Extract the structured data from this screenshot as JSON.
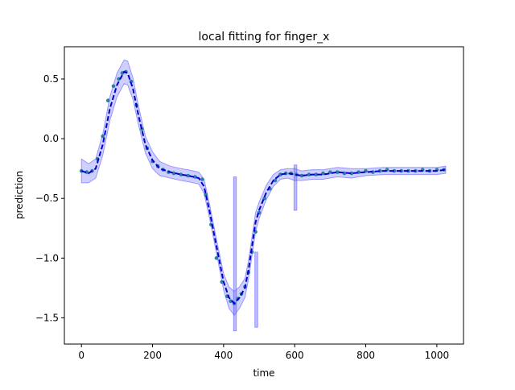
{
  "chart_data": {
    "type": "line",
    "title": "local fitting for finger_x",
    "xlabel": "time",
    "ylabel": "prediction",
    "xlim": [
      -48,
      1075
    ],
    "ylim": [
      -1.72,
      0.77
    ],
    "xticks": [
      0,
      200,
      400,
      600,
      800,
      1000
    ],
    "xtick_labels": [
      "0",
      "200",
      "400",
      "600",
      "800",
      "1000"
    ],
    "yticks": [
      0.5,
      0.0,
      -0.5,
      -1.0,
      -1.5
    ],
    "ytick_labels": [
      "0.5",
      "0.0",
      "−0.5",
      "−1.0",
      "−1.5"
    ],
    "grid": false,
    "series": [
      {
        "name": "local fit",
        "style": "dashed",
        "color": "#0000cc",
        "x": [
          0,
          20,
          40,
          60,
          80,
          100,
          120,
          130,
          145,
          160,
          180,
          200,
          220,
          250,
          280,
          300,
          330,
          345,
          360,
          380,
          400,
          415,
          430,
          445,
          460,
          470,
          480,
          490,
          500,
          520,
          540,
          560,
          580,
          600,
          620,
          650,
          680,
          700,
          720,
          760,
          800,
          850,
          900,
          950,
          1000,
          1025
        ],
        "y": [
          -0.27,
          -0.29,
          -0.25,
          -0.05,
          0.25,
          0.45,
          0.56,
          0.55,
          0.42,
          0.2,
          -0.05,
          -0.18,
          -0.25,
          -0.28,
          -0.3,
          -0.31,
          -0.33,
          -0.4,
          -0.6,
          -0.9,
          -1.2,
          -1.33,
          -1.38,
          -1.33,
          -1.25,
          -1.1,
          -0.9,
          -0.7,
          -0.6,
          -0.45,
          -0.35,
          -0.3,
          -0.29,
          -0.3,
          -0.31,
          -0.3,
          -0.3,
          -0.29,
          -0.28,
          -0.29,
          -0.28,
          -0.27,
          -0.27,
          -0.27,
          -0.27,
          -0.26
        ]
      },
      {
        "name": "observations",
        "style": "points",
        "color": "#2a7fa5",
        "x": [
          0,
          15,
          30,
          45,
          60,
          75,
          90,
          105,
          115,
          125,
          140,
          155,
          170,
          185,
          200,
          215,
          230,
          245,
          260,
          280,
          300,
          320,
          340,
          350,
          365,
          380,
          395,
          410,
          420,
          430,
          440,
          450,
          460,
          470,
          480,
          490,
          500,
          515,
          530,
          545,
          560,
          575,
          590,
          605,
          620,
          640,
          660,
          680,
          700,
          720,
          740,
          760,
          780,
          800,
          820,
          840,
          860,
          880,
          900,
          920,
          940,
          960,
          980,
          1000,
          1020
        ],
        "y": [
          -0.27,
          -0.28,
          -0.27,
          -0.17,
          0.02,
          0.32,
          0.44,
          0.5,
          0.55,
          0.56,
          0.48,
          0.28,
          0.08,
          -0.08,
          -0.19,
          -0.23,
          -0.26,
          -0.28,
          -0.29,
          -0.3,
          -0.31,
          -0.32,
          -0.34,
          -0.47,
          -0.72,
          -1.0,
          -1.2,
          -1.32,
          -1.36,
          -1.38,
          -1.34,
          -1.3,
          -1.24,
          -1.12,
          -0.95,
          -0.78,
          -0.62,
          -0.5,
          -0.42,
          -0.35,
          -0.3,
          -0.29,
          -0.29,
          -0.3,
          -0.31,
          -0.3,
          -0.3,
          -0.29,
          -0.28,
          -0.28,
          -0.29,
          -0.29,
          -0.28,
          -0.27,
          -0.28,
          -0.27,
          -0.26,
          -0.27,
          -0.27,
          -0.27,
          -0.27,
          -0.26,
          -0.27,
          -0.26,
          -0.26
        ]
      },
      {
        "name": "confidence band",
        "style": "band",
        "color": "#6b6bff",
        "x": [
          0,
          20,
          40,
          60,
          80,
          100,
          120,
          130,
          145,
          160,
          180,
          200,
          220,
          250,
          280,
          300,
          330,
          345,
          360,
          380,
          400,
          415,
          430,
          445,
          460,
          470,
          480,
          490,
          500,
          520,
          540,
          560,
          580,
          600,
          620,
          650,
          680,
          700,
          720,
          760,
          800,
          850,
          900,
          950,
          1000,
          1025
        ],
        "lower": [
          -0.37,
          -0.37,
          -0.33,
          -0.14,
          0.15,
          0.35,
          0.46,
          0.45,
          0.33,
          0.12,
          -0.12,
          -0.25,
          -0.31,
          -0.33,
          -0.35,
          -0.36,
          -0.38,
          -0.46,
          -0.66,
          -0.96,
          -1.27,
          -1.42,
          -1.48,
          -1.42,
          -1.33,
          -1.18,
          -0.98,
          -0.78,
          -0.67,
          -0.51,
          -0.4,
          -0.34,
          -0.33,
          -0.35,
          -0.35,
          -0.34,
          -0.34,
          -0.33,
          -0.32,
          -0.33,
          -0.31,
          -0.3,
          -0.3,
          -0.3,
          -0.3,
          -0.29
        ],
        "upper": [
          -0.17,
          -0.21,
          -0.17,
          0.04,
          0.35,
          0.55,
          0.66,
          0.65,
          0.51,
          0.28,
          0.02,
          -0.11,
          -0.19,
          -0.23,
          -0.25,
          -0.26,
          -0.28,
          -0.34,
          -0.54,
          -0.84,
          -1.13,
          -1.24,
          -1.28,
          -1.24,
          -1.17,
          -1.02,
          -0.82,
          -0.62,
          -0.53,
          -0.39,
          -0.3,
          -0.26,
          -0.25,
          -0.25,
          -0.27,
          -0.26,
          -0.26,
          -0.25,
          -0.24,
          -0.25,
          -0.25,
          -0.24,
          -0.24,
          -0.24,
          -0.24,
          -0.23
        ]
      }
    ],
    "spikes": [
      {
        "x": 432,
        "low": -1.61,
        "high": -0.32
      },
      {
        "x": 492,
        "low": -1.58,
        "high": -0.95
      },
      {
        "x": 602,
        "low": -0.6,
        "high": -0.22
      }
    ]
  }
}
